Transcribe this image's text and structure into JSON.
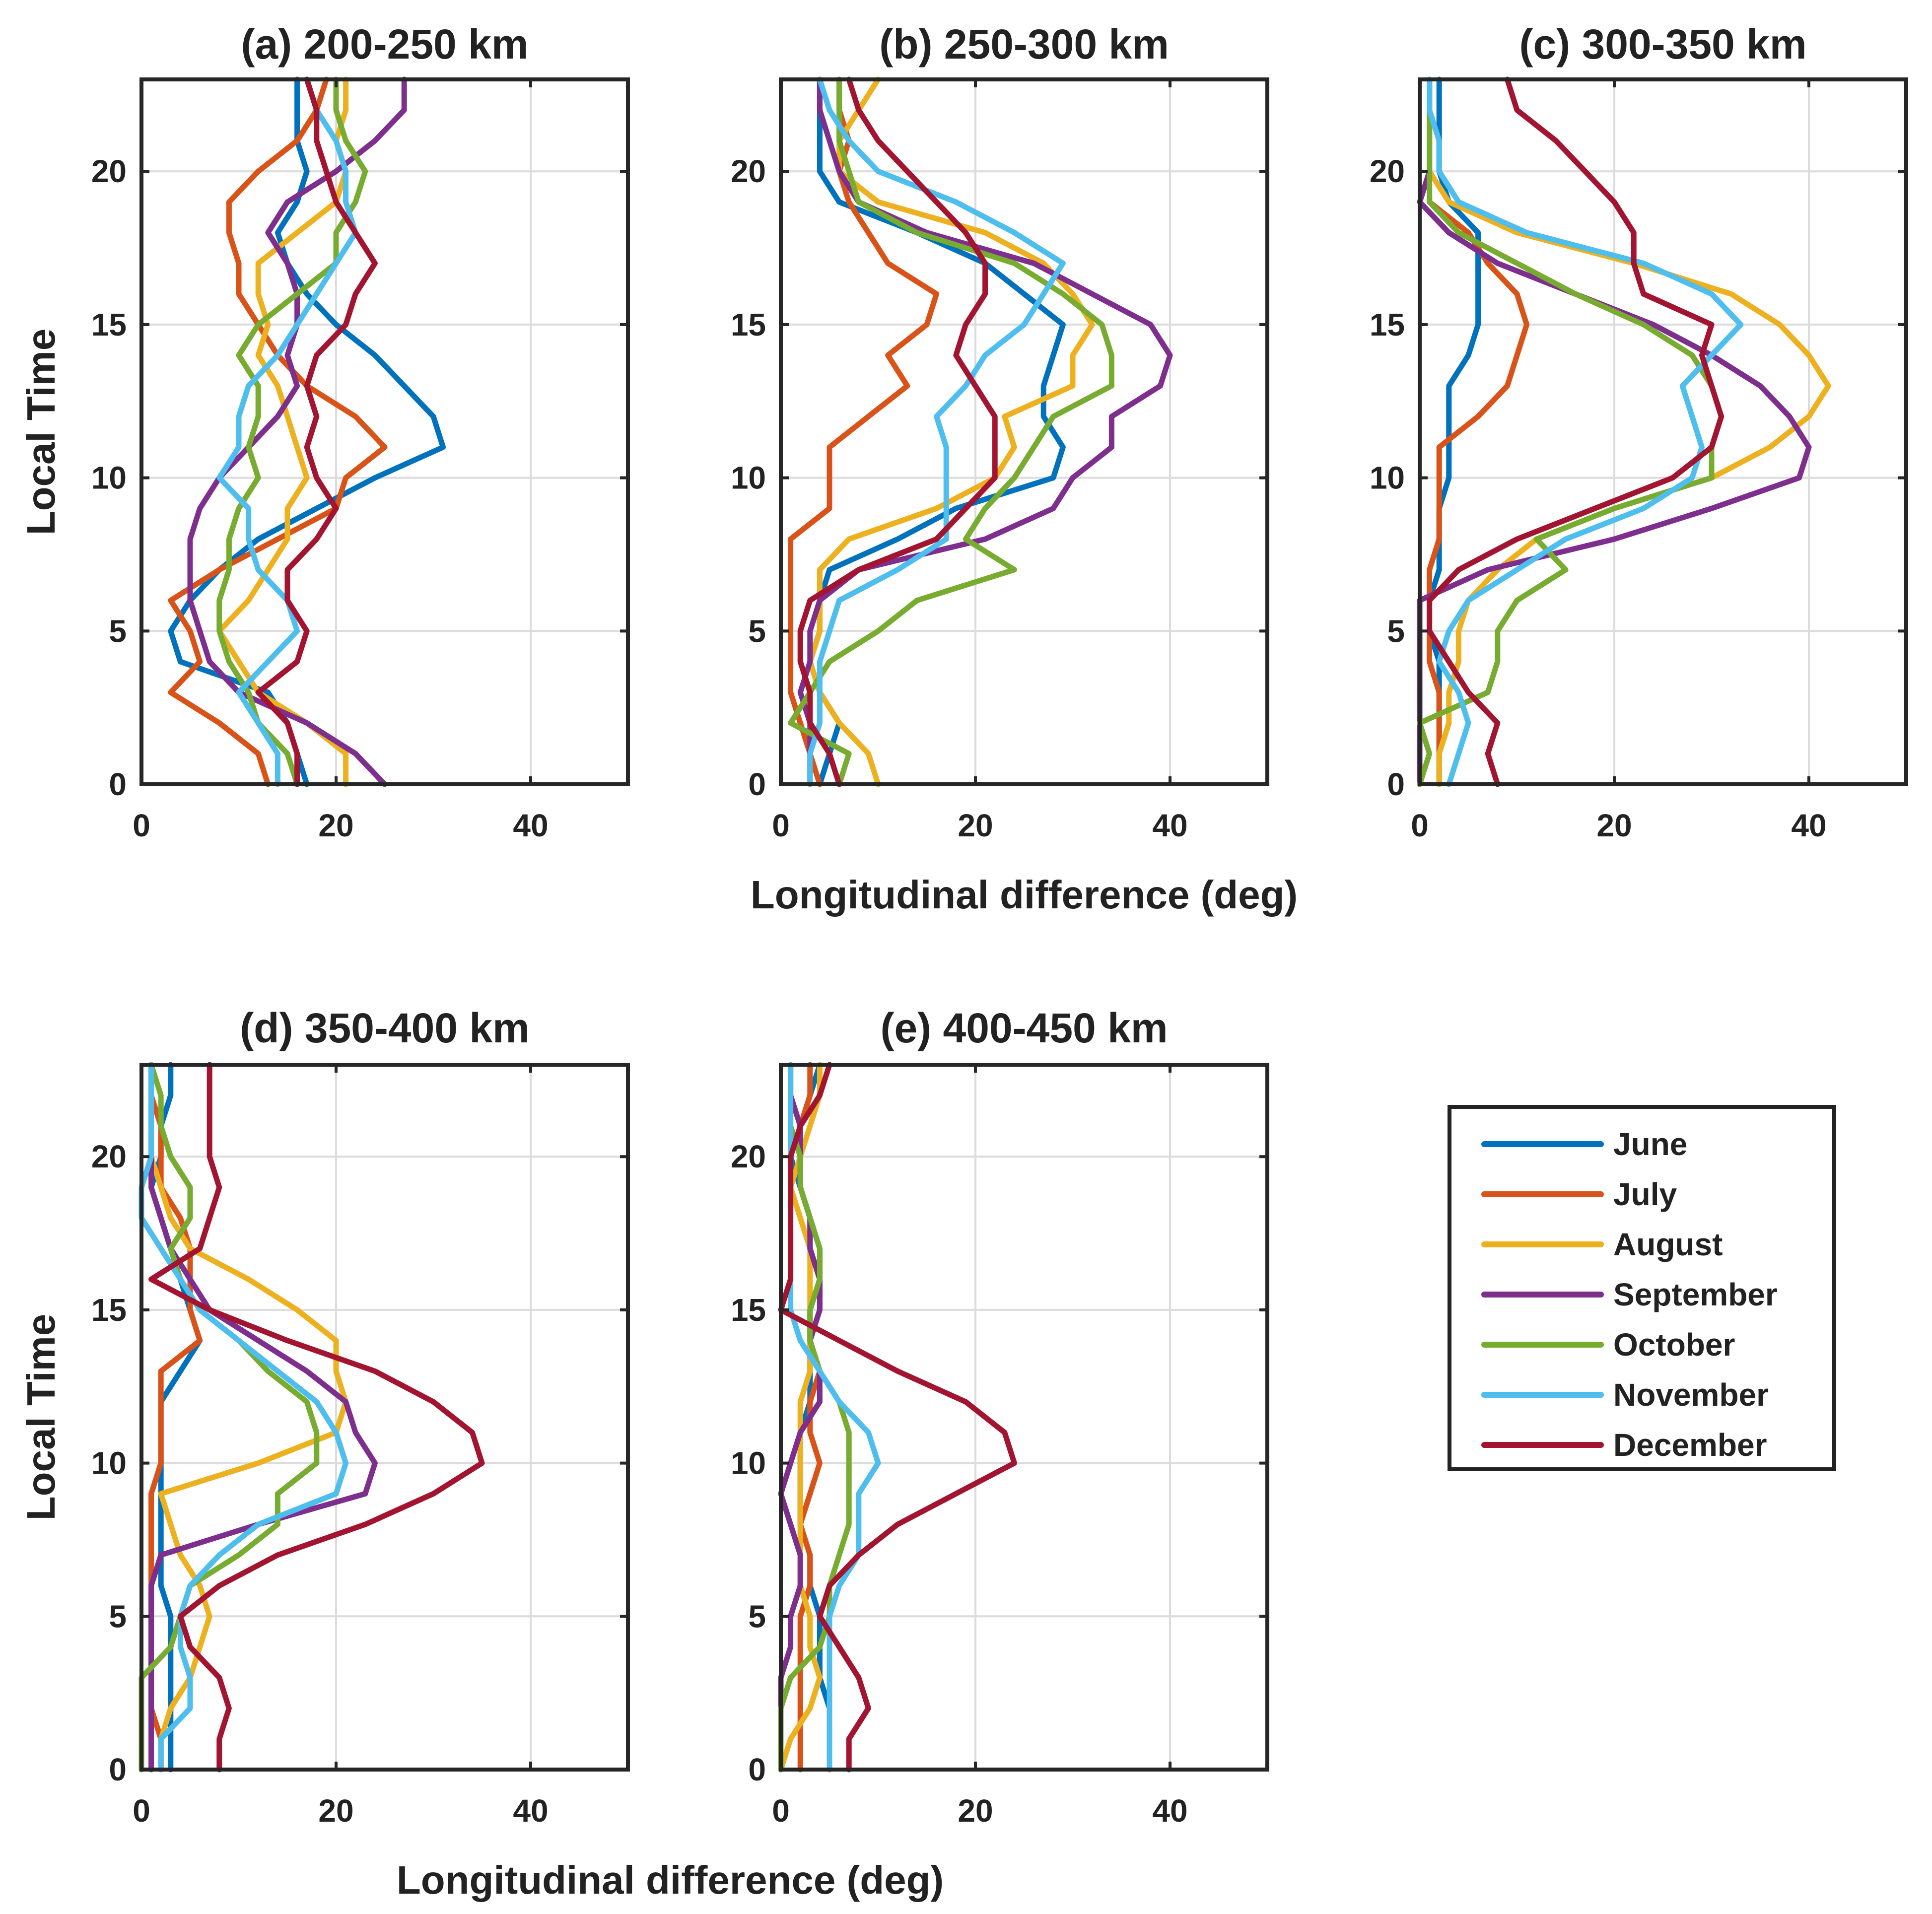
{
  "figure": {
    "xlabel": "Longitudinal difference (deg)",
    "ylabel": "Local Time"
  },
  "legend": {
    "placement": "right of panel (e)",
    "entries": [
      "June",
      "July",
      "August",
      "September",
      "October",
      "November",
      "December"
    ]
  },
  "series_colors": {
    "June": "#0072BD",
    "July": "#D95319",
    "August": "#EDB120",
    "September": "#7E2F8E",
    "October": "#77AC30",
    "November": "#4DBEEE",
    "December": "#A2142F"
  },
  "chart_data": [
    {
      "type": "line",
      "title": "(a) 200-250 km",
      "xlabel": "",
      "ylabel": "Local Time",
      "xlim": [
        0,
        50
      ],
      "ylim": [
        0,
        23
      ],
      "xticks": [
        "0",
        "20",
        "40"
      ],
      "yticks": [
        "0",
        "5",
        "10",
        "15",
        "20"
      ],
      "grid": true,
      "y": [
        0,
        1,
        2,
        3,
        4,
        5,
        6,
        7,
        8,
        9,
        10,
        11,
        12,
        13,
        14,
        15,
        16,
        17,
        18,
        19,
        20,
        21,
        22,
        23
      ],
      "series": [
        {
          "name": "June",
          "x": [
            17,
            16,
            15,
            13,
            4,
            3,
            5,
            8,
            12,
            18,
            24,
            31,
            30,
            27,
            24,
            20,
            17,
            15,
            14,
            16,
            17,
            16,
            16,
            16
          ]
        },
        {
          "name": "July",
          "x": [
            13,
            12,
            8,
            3,
            6,
            5,
            3,
            8,
            14,
            20,
            21,
            25,
            22,
            17,
            14,
            12,
            10,
            10,
            9,
            9,
            12,
            16,
            18,
            19
          ]
        },
        {
          "name": "August",
          "x": [
            21,
            21,
            17,
            12,
            10,
            8,
            11,
            13,
            15,
            15,
            17,
            16,
            15,
            14,
            12,
            13,
            12,
            12,
            16,
            20,
            21,
            20,
            21,
            21
          ]
        },
        {
          "name": "September",
          "x": [
            25,
            22,
            17,
            10,
            7,
            6,
            5,
            5,
            5,
            6,
            8,
            11,
            14,
            16,
            15,
            16,
            16,
            15,
            13,
            15,
            20,
            24,
            27,
            27
          ]
        },
        {
          "name": "October",
          "x": [
            16,
            15,
            12,
            11,
            9,
            8,
            8,
            9,
            9,
            10,
            12,
            11,
            12,
            12,
            10,
            12,
            16,
            20,
            20,
            22,
            23,
            21,
            20,
            20
          ]
        },
        {
          "name": "November",
          "x": [
            14,
            14,
            12,
            10,
            13,
            16,
            15,
            12,
            11,
            11,
            8,
            10,
            10,
            11,
            14,
            16,
            18,
            20,
            22,
            21,
            21,
            20,
            18,
            17
          ]
        },
        {
          "name": "December",
          "x": [
            16,
            16,
            15,
            12,
            16,
            17,
            15,
            15,
            18,
            20,
            18,
            17,
            18,
            17,
            18,
            21,
            22,
            24,
            22,
            20,
            19,
            18,
            18,
            17
          ]
        }
      ]
    },
    {
      "type": "line",
      "title": "(b) 250-300 km",
      "xlabel": "",
      "ylabel": "",
      "xlim": [
        0,
        50
      ],
      "ylim": [
        0,
        23
      ],
      "xticks": [
        "0",
        "20",
        "40"
      ],
      "yticks": [
        "0",
        "5",
        "10",
        "15",
        "20"
      ],
      "grid": true,
      "y": [
        0,
        1,
        2,
        3,
        4,
        5,
        6,
        7,
        8,
        9,
        10,
        11,
        12,
        13,
        14,
        15,
        16,
        17,
        18,
        19,
        20,
        21,
        22,
        23
      ],
      "series": [
        {
          "name": "June",
          "x": [
            4,
            5,
            6,
            4,
            3,
            4,
            4,
            5,
            12,
            18,
            28,
            29,
            27,
            27,
            28,
            29,
            25,
            21,
            14,
            6,
            4,
            4,
            4,
            4
          ]
        },
        {
          "name": "July",
          "x": [
            4,
            3,
            2,
            1,
            1,
            1,
            1,
            1,
            1,
            5,
            5,
            5,
            9,
            13,
            11,
            15,
            16,
            11,
            9,
            7,
            6,
            7,
            6,
            6
          ]
        },
        {
          "name": "August",
          "x": [
            10,
            9,
            6,
            4,
            3,
            4,
            4,
            4,
            7,
            16,
            22,
            24,
            23,
            30,
            30,
            32,
            30,
            27,
            21,
            10,
            6,
            6,
            8,
            10
          ]
        },
        {
          "name": "September",
          "x": [
            3,
            3,
            3,
            2,
            3,
            3,
            4,
            8,
            21,
            28,
            30,
            34,
            34,
            39,
            40,
            38,
            32,
            26,
            15,
            8,
            6,
            5,
            4,
            4
          ]
        },
        {
          "name": "October",
          "x": [
            6,
            7,
            1,
            3,
            5,
            10,
            14,
            24,
            19,
            21,
            24,
            26,
            28,
            34,
            34,
            33,
            29,
            24,
            14,
            8,
            7,
            6,
            6,
            6
          ]
        },
        {
          "name": "November",
          "x": [
            3,
            3,
            4,
            4,
            4,
            5,
            6,
            12,
            17,
            17,
            17,
            17,
            16,
            19,
            21,
            25,
            27,
            29,
            24,
            18,
            10,
            7,
            5,
            4
          ]
        },
        {
          "name": "December",
          "x": [
            6,
            5,
            3,
            3,
            2,
            2,
            3,
            8,
            16,
            19,
            22,
            22,
            22,
            20,
            18,
            19,
            21,
            21,
            19,
            16,
            13,
            10,
            8,
            7
          ]
        }
      ]
    },
    {
      "type": "line",
      "title": "(c) 300-350 km",
      "xlabel": "Longitudinal difference (deg)",
      "ylabel": "",
      "xlim": [
        0,
        50
      ],
      "ylim": [
        0,
        23
      ],
      "xticks": [
        "0",
        "20",
        "40"
      ],
      "yticks": [
        "0",
        "5",
        "10",
        "15",
        "20"
      ],
      "grid": true,
      "y": [
        0,
        1,
        2,
        3,
        4,
        5,
        6,
        7,
        8,
        9,
        10,
        11,
        12,
        13,
        14,
        15,
        16,
        17,
        18,
        19,
        20,
        21,
        22,
        23
      ],
      "series": [
        {
          "name": "June",
          "x": [
            2,
            2,
            2,
            2,
            2,
            1,
            1,
            2,
            2,
            2,
            3,
            3,
            3,
            3,
            5,
            6,
            6,
            6,
            6,
            3,
            2,
            2,
            2,
            2
          ]
        },
        {
          "name": "July",
          "x": [
            2,
            2,
            2,
            2,
            1,
            1,
            1,
            1,
            2,
            2,
            2,
            2,
            6,
            9,
            10,
            11,
            10,
            7,
            5,
            1,
            1,
            1,
            1,
            1
          ]
        },
        {
          "name": "August",
          "x": [
            2,
            2,
            3,
            3,
            4,
            4,
            5,
            8,
            12,
            20,
            30,
            36,
            40,
            42,
            40,
            37,
            32,
            22,
            10,
            3,
            1,
            1,
            1,
            1
          ]
        },
        {
          "name": "September",
          "x": [
            0,
            0,
            0,
            0,
            0,
            0,
            0,
            7,
            20,
            30,
            39,
            40,
            38,
            35,
            30,
            24,
            16,
            8,
            3,
            0,
            1,
            1,
            1,
            1
          ]
        },
        {
          "name": "October",
          "x": [
            0,
            1,
            0,
            7,
            8,
            8,
            10,
            15,
            12,
            20,
            30,
            30,
            31,
            30,
            28,
            23,
            16,
            10,
            4,
            1,
            1,
            1,
            1,
            1
          ]
        },
        {
          "name": "November",
          "x": [
            3,
            4,
            5,
            4,
            2,
            3,
            5,
            10,
            15,
            23,
            28,
            29,
            28,
            27,
            30,
            33,
            30,
            23,
            11,
            4,
            2,
            2,
            1,
            1
          ]
        },
        {
          "name": "December",
          "x": [
            8,
            7,
            8,
            5,
            3,
            1,
            1,
            4,
            10,
            18,
            26,
            30,
            31,
            30,
            29,
            30,
            23,
            22,
            22,
            20,
            17,
            14,
            10,
            9
          ]
        }
      ]
    },
    {
      "type": "line",
      "title": "(d) 350-400 km",
      "xlabel": "",
      "ylabel": "Local Time",
      "xlim": [
        0,
        50
      ],
      "ylim": [
        0,
        23
      ],
      "xticks": [
        "0",
        "20",
        "40"
      ],
      "yticks": [
        "0",
        "5",
        "10",
        "15",
        "20"
      ],
      "grid": true,
      "y": [
        0,
        1,
        2,
        3,
        4,
        5,
        6,
        7,
        8,
        9,
        10,
        11,
        12,
        13,
        14,
        15,
        16,
        17,
        18,
        19,
        20,
        21,
        22,
        23
      ],
      "series": [
        {
          "name": "June",
          "x": [
            3,
            3,
            3,
            3,
            3,
            3,
            2,
            2,
            2,
            2,
            2,
            2,
            2,
            4,
            6,
            5,
            4,
            3,
            2,
            1,
            2,
            2,
            3,
            3
          ]
        },
        {
          "name": "July",
          "x": [
            2,
            2,
            1,
            1,
            1,
            1,
            1,
            1,
            1,
            1,
            2,
            2,
            2,
            2,
            6,
            5,
            5,
            5,
            4,
            2,
            2,
            2,
            1,
            1
          ]
        },
        {
          "name": "August",
          "x": [
            2,
            2,
            3,
            5,
            6,
            7,
            6,
            4,
            3,
            2,
            12,
            20,
            21,
            20,
            20,
            16,
            11,
            5,
            3,
            2,
            1,
            1,
            1,
            1
          ]
        },
        {
          "name": "September",
          "x": [
            1,
            1,
            1,
            1,
            1,
            1,
            1,
            2,
            12,
            23,
            24,
            22,
            21,
            17,
            12,
            7,
            5,
            3,
            2,
            1,
            1,
            1,
            1,
            1
          ]
        },
        {
          "name": "October",
          "x": [
            0,
            0,
            0,
            0,
            3,
            4,
            5,
            10,
            14,
            14,
            18,
            18,
            17,
            13,
            10,
            6,
            4,
            3,
            5,
            5,
            3,
            2,
            2,
            1
          ]
        },
        {
          "name": "November",
          "x": [
            2,
            2,
            5,
            5,
            4,
            4,
            5,
            8,
            12,
            20,
            21,
            20,
            18,
            14,
            10,
            6,
            4,
            2,
            0,
            0,
            1,
            1,
            1,
            1
          ]
        },
        {
          "name": "December",
          "x": [
            8,
            8,
            9,
            8,
            5,
            4,
            8,
            14,
            23,
            30,
            35,
            34,
            30,
            24,
            15,
            7,
            1,
            6,
            7,
            8,
            7,
            7,
            7,
            7
          ]
        }
      ]
    },
    {
      "type": "line",
      "title": "(e) 400-450 km",
      "xlabel": "Longitudinal difference (deg)",
      "ylabel": "",
      "xlim": [
        0,
        50
      ],
      "ylim": [
        0,
        23
      ],
      "xticks": [
        "0",
        "20",
        "40"
      ],
      "yticks": [
        "0",
        "5",
        "10",
        "15",
        "20"
      ],
      "grid": true,
      "y": [
        0,
        1,
        2,
        3,
        4,
        5,
        6,
        7,
        8,
        9,
        10,
        11,
        12,
        13,
        14,
        15,
        16,
        17,
        18,
        19,
        20,
        21,
        22,
        23
      ],
      "series": [
        {
          "name": "June",
          "x": [
            5,
            5,
            5,
            4,
            4,
            4,
            3,
            3,
            2,
            2,
            2,
            2,
            3,
            3,
            3,
            3,
            4,
            4,
            3,
            2,
            1,
            2,
            3,
            4
          ]
        },
        {
          "name": "July",
          "x": [
            2,
            2,
            2,
            2,
            2,
            2,
            3,
            3,
            2,
            3,
            4,
            3,
            3,
            4,
            3,
            4,
            4,
            3,
            3,
            2,
            2,
            2,
            3,
            3
          ]
        },
        {
          "name": "August",
          "x": [
            0,
            1,
            3,
            4,
            3,
            3,
            2,
            2,
            2,
            2,
            2,
            2,
            2,
            3,
            3,
            3,
            3,
            3,
            2,
            1,
            2,
            3,
            4,
            4
          ]
        },
        {
          "name": "September",
          "x": [
            0,
            0,
            0,
            0,
            1,
            1,
            2,
            2,
            1,
            0,
            1,
            2,
            4,
            4,
            3,
            4,
            4,
            3,
            3,
            2,
            2,
            2,
            1,
            1
          ]
        },
        {
          "name": "October",
          "x": [
            0,
            0,
            0,
            1,
            4,
            5,
            5,
            6,
            7,
            7,
            7,
            7,
            6,
            4,
            3,
            3,
            4,
            4,
            3,
            2,
            2,
            1,
            1,
            1
          ]
        },
        {
          "name": "November",
          "x": [
            5,
            5,
            5,
            5,
            5,
            5,
            6,
            8,
            8,
            8,
            10,
            9,
            6,
            4,
            2,
            1,
            1,
            1,
            1,
            1,
            1,
            1,
            1,
            1
          ]
        },
        {
          "name": "December",
          "x": [
            7,
            7,
            9,
            8,
            6,
            4,
            5,
            8,
            12,
            18,
            24,
            23,
            19,
            12,
            6,
            0,
            1,
            1,
            1,
            1,
            1,
            2,
            4,
            5
          ]
        }
      ]
    }
  ]
}
